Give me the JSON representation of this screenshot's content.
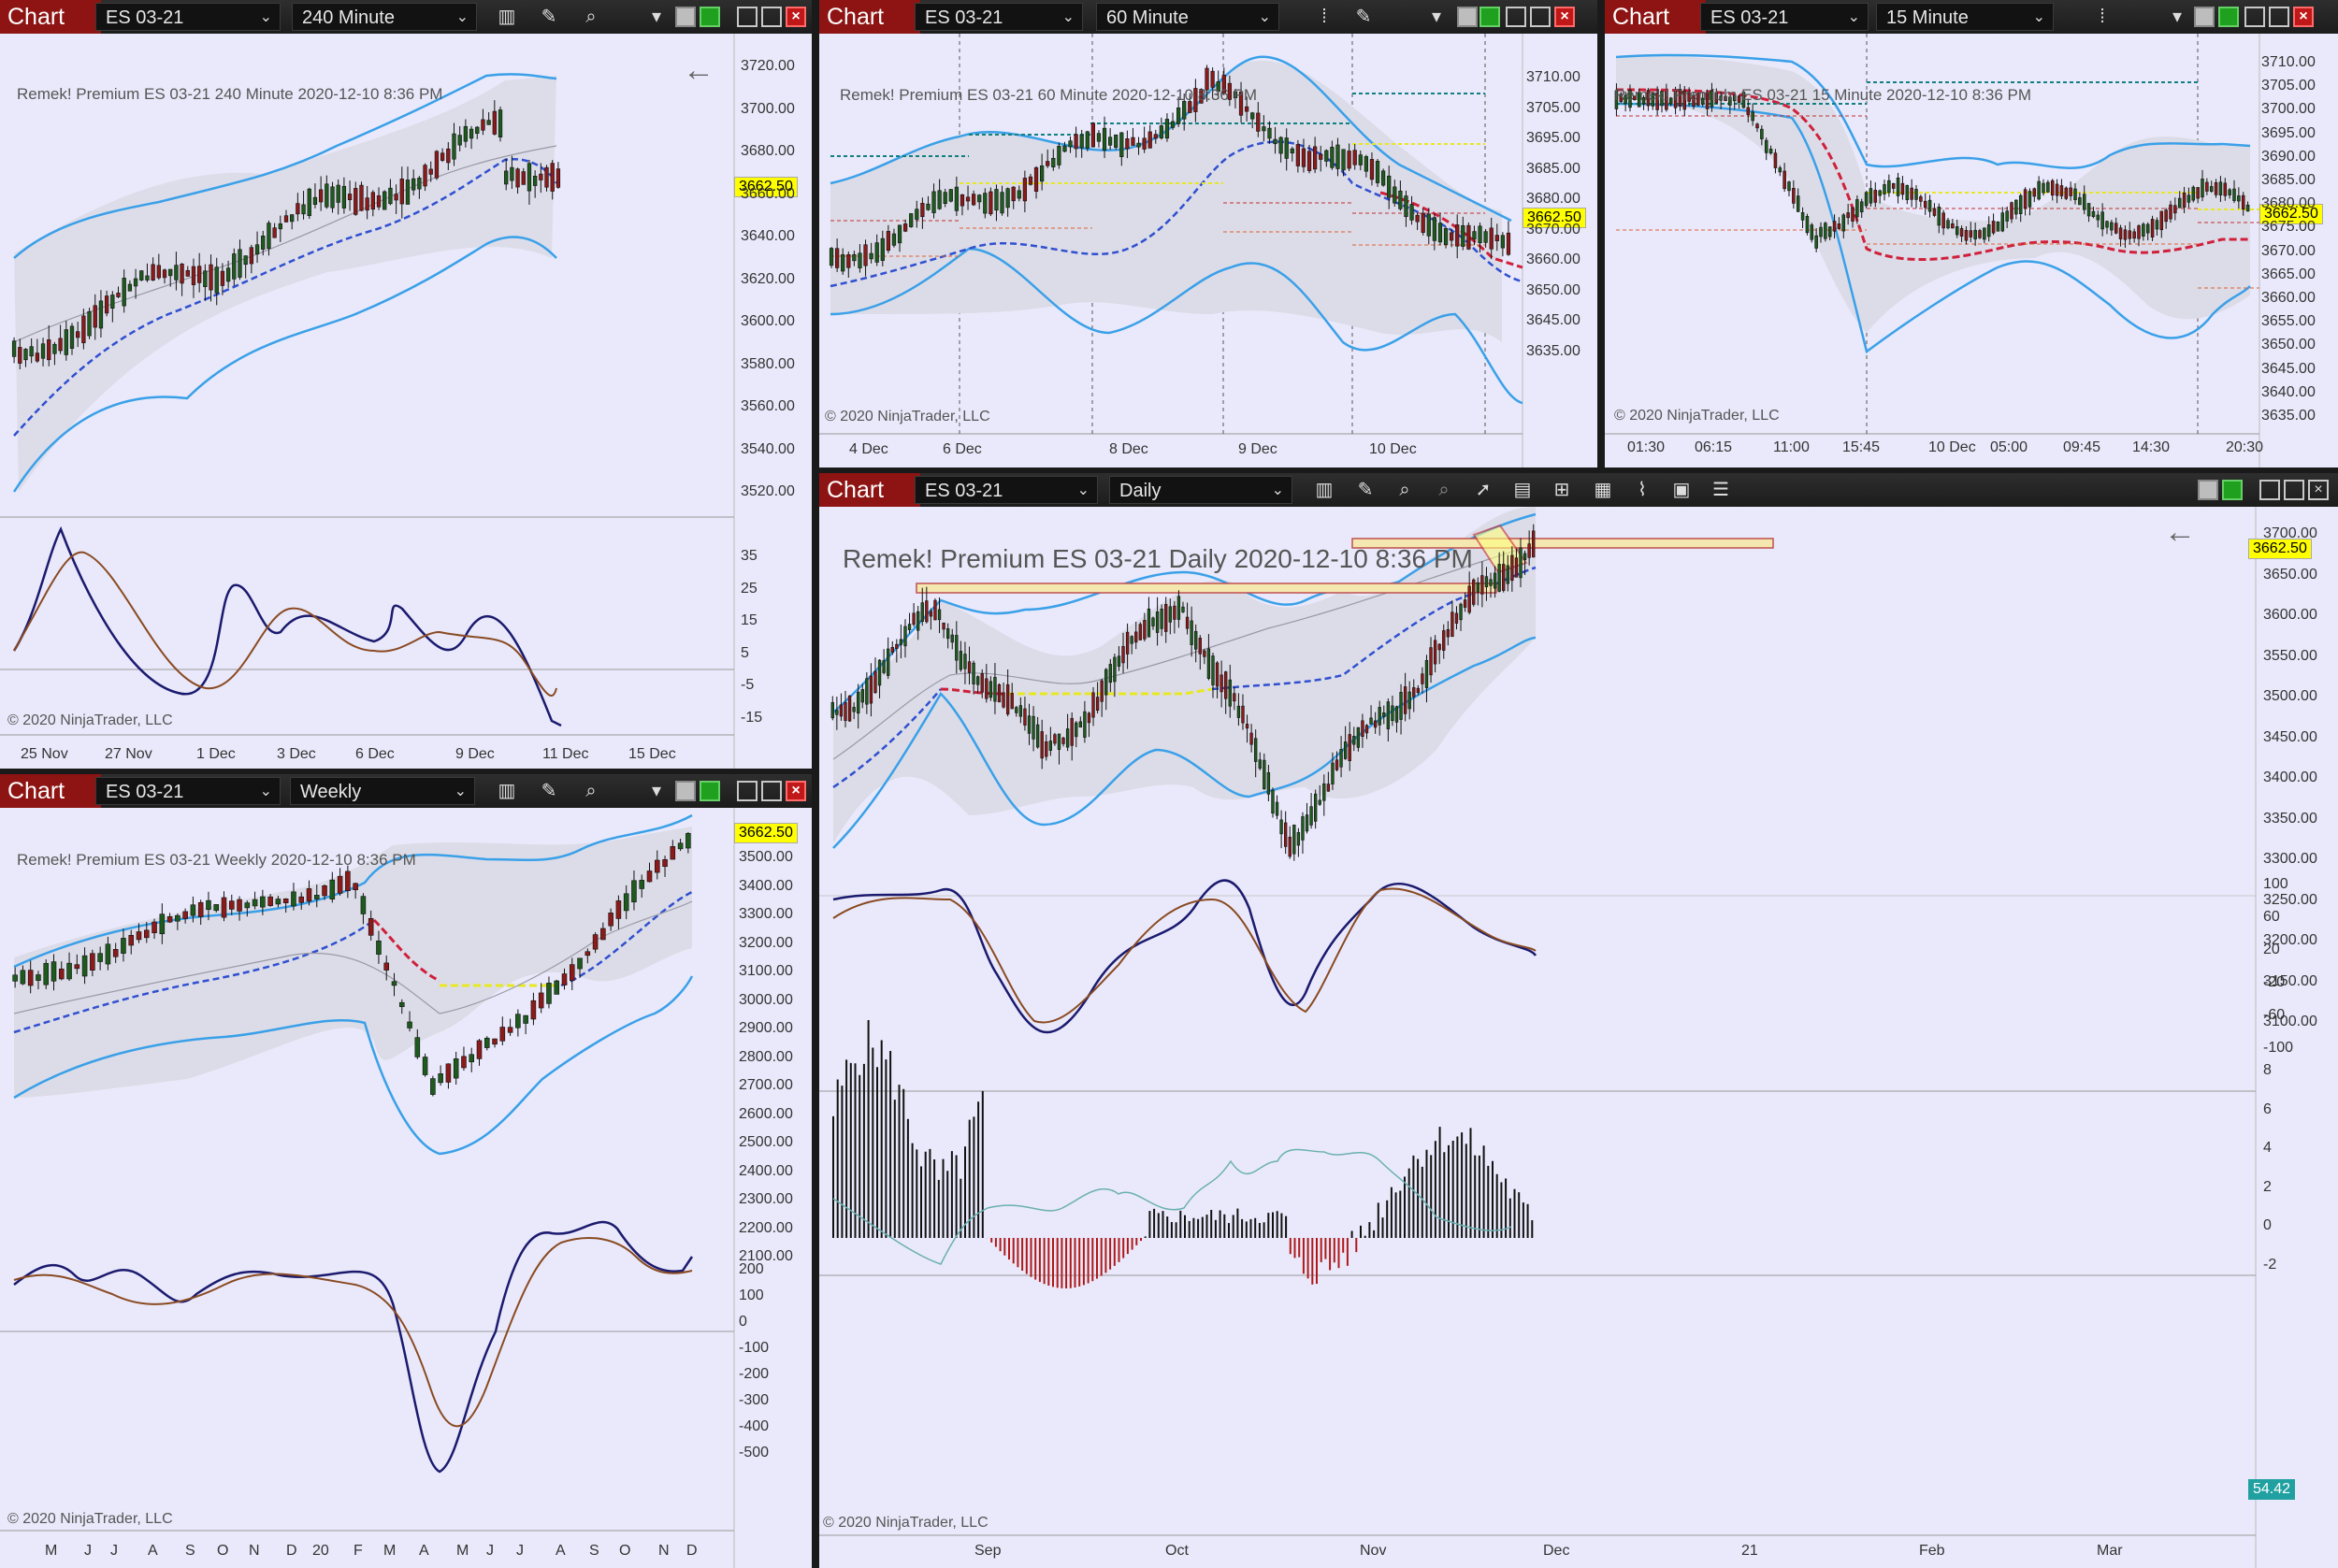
{
  "windows": {
    "w240": {
      "chart_label": "Chart",
      "instrument": "ES 03-21",
      "interval": "240 Minute",
      "caption": "Remek!  Premium  ES 03-21  240 Minute  2020-12-10 8:36 PM",
      "price_tag": "3662.50",
      "y_ticks": [
        "3720.00",
        "3700.00",
        "3680.00",
        "3660.00",
        "3640.00",
        "3620.00",
        "3600.00",
        "3580.00",
        "3560.00",
        "3540.00",
        "3520.00"
      ],
      "osc_ticks": [
        "35",
        "25",
        "15",
        "5",
        "-5",
        "-15"
      ],
      "x_ticks": [
        "25 Nov",
        "27 Nov",
        "1 Dec",
        "3 Dec",
        "6 Dec",
        "9 Dec",
        "11 Dec",
        "15 Dec"
      ],
      "copyright": "© 2020 NinjaTrader, LLC"
    },
    "w60": {
      "chart_label": "Chart",
      "instrument": "ES 03-21",
      "interval": "60 Minute",
      "caption": "Remek!  Premium  ES 03-21  60 Minute  2020-12-10 8:36 PM",
      "price_tag": "3662.50",
      "y_ticks": [
        "3710.00",
        "3705.00",
        "3695.00",
        "3685.00",
        "3680.00",
        "3670.00",
        "3660.00",
        "3650.00",
        "3645.00",
        "3635.00"
      ],
      "x_ticks": [
        "4 Dec",
        "6 Dec",
        "8 Dec",
        "9 Dec",
        "10 Dec"
      ],
      "copyright": "© 2020 NinjaTrader, LLC"
    },
    "w15": {
      "chart_label": "Chart",
      "instrument": "ES 03-21",
      "interval": "15 Minute",
      "caption": "Remek!  Premium  ES 03-21  15 Minute  2020-12-10 8:36 PM",
      "price_tag": "3662.50",
      "y_ticks": [
        "3710.00",
        "3705.00",
        "3700.00",
        "3695.00",
        "3690.00",
        "3685.00",
        "3680.00",
        "3675.00",
        "3670.00",
        "3665.00",
        "3660.00",
        "3655.00",
        "3650.00",
        "3645.00",
        "3640.00",
        "3635.00"
      ],
      "x_ticks": [
        "01:30",
        "06:15",
        "11:00",
        "15:45",
        "10 Dec",
        "05:00",
        "09:45",
        "14:30",
        "20:30"
      ],
      "copyright": "© 2020 NinjaTrader, LLC"
    },
    "weekly": {
      "chart_label": "Chart",
      "instrument": "ES 03-21",
      "interval": "Weekly",
      "caption": "Remek!  Premium  ES 03-21  Weekly  2020-12-10 8:36 PM",
      "price_tag": "3662.50",
      "y_ticks": [
        "3500.00",
        "3400.00",
        "3300.00",
        "3200.00",
        "3100.00",
        "3000.00",
        "2900.00",
        "2800.00",
        "2700.00",
        "2600.00",
        "2500.00",
        "2400.00",
        "2300.00",
        "2200.00",
        "2100.00"
      ],
      "osc_ticks": [
        "200",
        "100",
        "0",
        "-100",
        "-200",
        "-300",
        "-400",
        "-500"
      ],
      "x_ticks": [
        "M",
        "J",
        "J",
        "A",
        "S",
        "O",
        "N",
        "D",
        "20",
        "F",
        "M",
        "A",
        "M",
        "J",
        "J",
        "A",
        "S",
        "O",
        "N",
        "D"
      ],
      "copyright": "© 2020 NinjaTrader, LLC"
    },
    "daily": {
      "chart_label": "Chart",
      "instrument": "ES 03-21",
      "interval": "Daily",
      "caption": "Remek!  Premium  ES 03-21  Daily  2020-12-10 8:36 PM",
      "price_tag": "3662.50",
      "hist_tag": "54.42",
      "y_ticks": [
        "3700.00",
        "3650.00",
        "3600.00",
        "3550.00",
        "3500.00",
        "3450.00",
        "3400.00",
        "3350.00",
        "3300.00",
        "3250.00",
        "3200.00",
        "3150.00",
        "3100.00"
      ],
      "osc_ticks": [
        "100",
        "60",
        "20",
        "-20",
        "-60",
        "-100"
      ],
      "hist_ticks": [
        "8",
        "6",
        "4",
        "2",
        "0",
        "-2"
      ],
      "x_ticks": [
        "Sep",
        "Oct",
        "Nov",
        "Dec",
        "21",
        "Feb",
        "Mar"
      ],
      "copyright": "© 2020 NinjaTrader, LLC"
    }
  },
  "icons": [
    "bars-icon",
    "pencil-icon",
    "zoom-icon",
    "arrow-cursor-icon",
    "window-minimize-icon",
    "window-maximize-icon",
    "close-icon"
  ],
  "colors": {
    "title_bar": "#8e1414",
    "chart_bg": "#e9e9fb",
    "band": "#3aa0e8",
    "ma": "#3050d0",
    "up": "#1e5a1e",
    "down": "#8b1a1a",
    "price_tag": "#ffff00"
  }
}
